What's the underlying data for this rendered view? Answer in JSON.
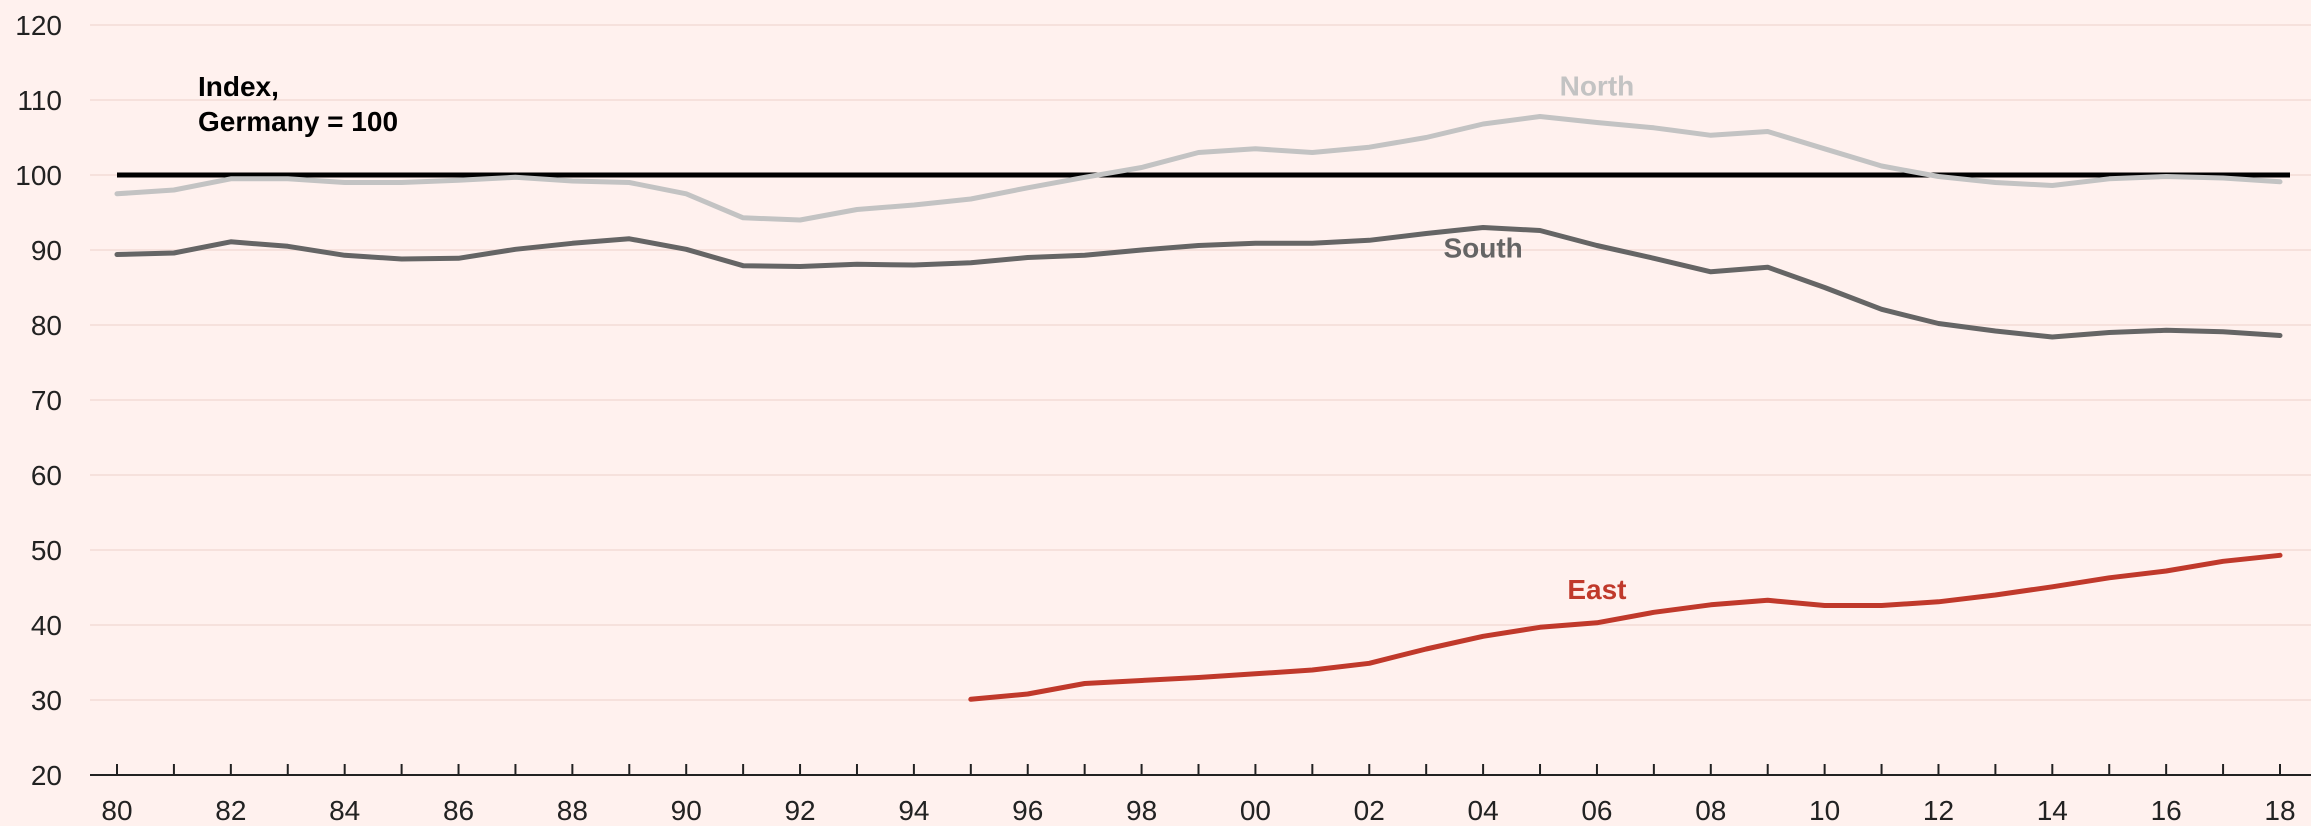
{
  "chart_data": {
    "type": "line",
    "title": "",
    "xlabel": "",
    "ylabel": "",
    "annotation": [
      "Index,",
      "Germany = 100"
    ],
    "ylim": [
      20,
      120
    ],
    "xlim": [
      1980,
      2018
    ],
    "yticks": [
      20,
      30,
      40,
      50,
      60,
      70,
      80,
      90,
      100,
      110,
      120
    ],
    "xtick_labels": [
      "80",
      "82",
      "84",
      "86",
      "88",
      "90",
      "92",
      "94",
      "96",
      "98",
      "00",
      "02",
      "04",
      "06",
      "08",
      "10",
      "12",
      "14",
      "16",
      "18"
    ],
    "reference_line": {
      "value": 100,
      "color": "#000000"
    },
    "series": [
      {
        "name": "North",
        "color": "#c3c3c3",
        "x": [
          1980,
          1981,
          1982,
          1983,
          1984,
          1985,
          1986,
          1987,
          1988,
          1989,
          1990,
          1991,
          1992,
          1993,
          1994,
          1995,
          1996,
          1997,
          1998,
          1999,
          2000,
          2001,
          2002,
          2003,
          2004,
          2005,
          2006,
          2007,
          2008,
          2009,
          2010,
          2011,
          2012,
          2013,
          2014,
          2015,
          2016,
          2017,
          2018
        ],
        "values": [
          97.5,
          98,
          99.5,
          99.5,
          99,
          99,
          99.3,
          99.7,
          99.2,
          99,
          97.5,
          94.3,
          94,
          95.4,
          96,
          96.8,
          98.3,
          99.7,
          101,
          103,
          103.5,
          103,
          103.7,
          105,
          106.8,
          107.8,
          107,
          106.3,
          105.3,
          105.8,
          103.5,
          101.2,
          99.8,
          99,
          98.6,
          99.5,
          99.8,
          99.6,
          99.1
        ]
      },
      {
        "name": "South",
        "color": "#656565",
        "x": [
          1980,
          1981,
          1982,
          1983,
          1984,
          1985,
          1986,
          1987,
          1988,
          1989,
          1990,
          1991,
          1992,
          1993,
          1994,
          1995,
          1996,
          1997,
          1998,
          1999,
          2000,
          2001,
          2002,
          2003,
          2004,
          2005,
          2006,
          2007,
          2008,
          2009,
          2010,
          2011,
          2012,
          2013,
          2014,
          2015,
          2016,
          2017,
          2018
        ],
        "values": [
          89.4,
          89.6,
          91.1,
          90.5,
          89.3,
          88.8,
          88.9,
          90.1,
          90.9,
          91.5,
          90.1,
          87.9,
          87.8,
          88.1,
          88,
          88.3,
          89,
          89.3,
          90,
          90.6,
          90.9,
          90.9,
          91.3,
          92.2,
          93,
          92.6,
          90.6,
          88.9,
          87.1,
          87.7,
          85,
          82.1,
          80.2,
          79.2,
          78.4,
          79,
          79.3,
          79.1,
          78.6
        ]
      },
      {
        "name": "East",
        "color": "#c0392b",
        "x": [
          1995,
          1996,
          1997,
          1998,
          1999,
          2000,
          2001,
          2002,
          2003,
          2004,
          2005,
          2006,
          2007,
          2008,
          2009,
          2010,
          2011,
          2012,
          2013,
          2014,
          2015,
          2016,
          2017,
          2018
        ],
        "values": [
          30.1,
          30.8,
          32.2,
          32.6,
          33,
          33.5,
          34,
          34.9,
          36.8,
          38.5,
          39.7,
          40.3,
          41.7,
          42.7,
          43.3,
          42.6,
          42.6,
          43.1,
          44,
          45.1,
          46.3,
          47.2,
          48.5,
          49.3
        ]
      }
    ],
    "grid": true,
    "legend": "none"
  }
}
